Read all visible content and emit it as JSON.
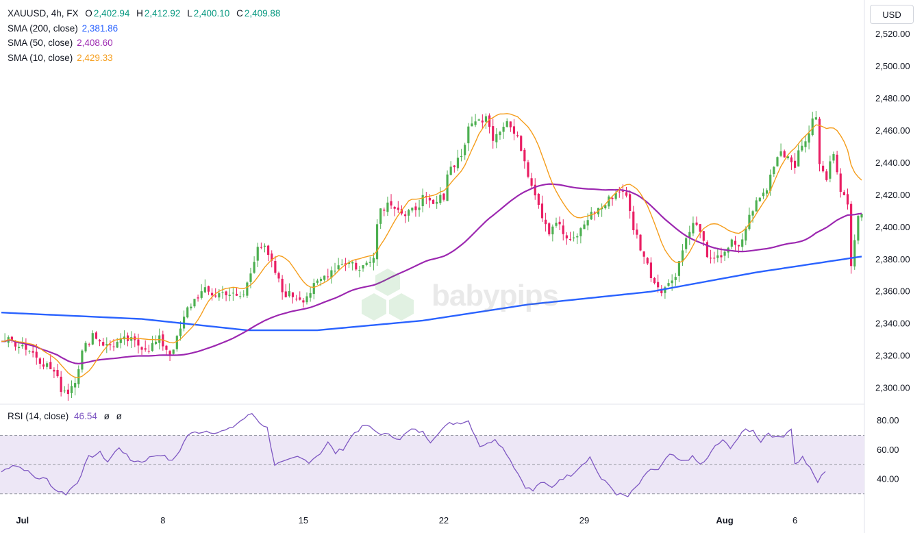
{
  "header": {
    "symbol": "XAUUSD, 4h, FX",
    "open_label": "O",
    "open": "2,402.94",
    "high_label": "H",
    "high": "2,412.92",
    "low_label": "L",
    "low": "2,400.10",
    "close_label": "C",
    "close": "2,409.88",
    "ohlc_color": "#4caf50"
  },
  "indicators": [
    {
      "label": "SMA (200, close)",
      "value": "2,381.86",
      "color": "#2962ff"
    },
    {
      "label": "SMA (50, close)",
      "value": "2,408.60",
      "color": "#9c27b0"
    },
    {
      "label": "SMA (10, close)",
      "value": "2,429.33",
      "color": "#f59d1b"
    }
  ],
  "rsi_legend": {
    "label": "RSI (14, close)",
    "value": "46.54",
    "extra1": "ø",
    "extra2": "ø",
    "color": "#7e57c2"
  },
  "currency_button": "USD",
  "watermark": "babypips",
  "colors": {
    "up": "#4caf50",
    "down": "#e91e63",
    "sma200": "#2962ff",
    "sma50": "#9c27b0",
    "sma10": "#f59d1b",
    "rsi": "#7e57c2",
    "rsi_band": "#ede7f6"
  },
  "chart_data": [
    {
      "type": "candlestick",
      "title": "XAUUSD, 4h, FX",
      "y_axis_ticks": [
        "2,300.00",
        "2,320.00",
        "2,340.00",
        "2,360.00",
        "2,380.00",
        "2,400.00",
        "2,420.00",
        "2,440.00",
        "2,460.00",
        "2,480.00",
        "2,500.00",
        "2,520.00"
      ],
      "ylim": [
        2290,
        2532
      ],
      "x_axis_ticks": [
        "Jul",
        "8",
        "15",
        "22",
        "29",
        "Aug",
        "6"
      ],
      "x_tick_positions": [
        6,
        46,
        86,
        126,
        166,
        206,
        226
      ],
      "series_anchors": {
        "price": [
          [
            0,
            2330
          ],
          [
            3,
            2329
          ],
          [
            6,
            2327
          ],
          [
            9,
            2322
          ],
          [
            12,
            2316
          ],
          [
            15,
            2310
          ],
          [
            17,
            2300
          ],
          [
            19,
            2298
          ],
          [
            21,
            2306
          ],
          [
            23,
            2322
          ],
          [
            26,
            2334
          ],
          [
            28,
            2330
          ],
          [
            30,
            2326
          ],
          [
            33,
            2328
          ],
          [
            36,
            2330
          ],
          [
            39,
            2327
          ],
          [
            42,
            2325
          ],
          [
            45,
            2330
          ],
          [
            48,
            2322
          ],
          [
            50,
            2330
          ],
          [
            53,
            2349
          ],
          [
            56,
            2358
          ],
          [
            58,
            2360
          ],
          [
            61,
            2358
          ],
          [
            64,
            2360
          ],
          [
            67,
            2356
          ],
          [
            69,
            2358
          ],
          [
            71,
            2372
          ],
          [
            73,
            2390
          ],
          [
            75,
            2386
          ],
          [
            78,
            2372
          ],
          [
            80,
            2360
          ],
          [
            82,
            2358
          ],
          [
            86,
            2356
          ],
          [
            88,
            2360
          ],
          [
            90,
            2365
          ],
          [
            93,
            2372
          ],
          [
            95,
            2375
          ],
          [
            97,
            2378
          ],
          [
            100,
            2378
          ],
          [
            102,
            2373
          ],
          [
            104,
            2378
          ],
          [
            106,
            2384
          ],
          [
            107,
            2402
          ],
          [
            108,
            2412
          ],
          [
            111,
            2416
          ],
          [
            113,
            2412
          ],
          [
            115,
            2406
          ],
          [
            117,
            2410
          ],
          [
            120,
            2418
          ],
          [
            123,
            2413
          ],
          [
            126,
            2420
          ],
          [
            127,
            2434
          ],
          [
            129,
            2440
          ],
          [
            131,
            2445
          ],
          [
            133,
            2460
          ],
          [
            135,
            2468
          ],
          [
            137,
            2464
          ],
          [
            138,
            2472
          ],
          [
            140,
            2456
          ],
          [
            142,
            2462
          ],
          [
            144,
            2466
          ],
          [
            146,
            2458
          ],
          [
            148,
            2450
          ],
          [
            150,
            2434
          ],
          [
            152,
            2422
          ],
          [
            154,
            2408
          ],
          [
            156,
            2398
          ],
          [
            158,
            2404
          ],
          [
            160,
            2396
          ],
          [
            162,
            2390
          ],
          [
            165,
            2398
          ],
          [
            167,
            2406
          ],
          [
            169,
            2410
          ],
          [
            172,
            2414
          ],
          [
            174,
            2420
          ],
          [
            177,
            2424
          ],
          [
            178,
            2418
          ],
          [
            180,
            2400
          ],
          [
            182,
            2388
          ],
          [
            184,
            2376
          ],
          [
            186,
            2366
          ],
          [
            188,
            2362
          ],
          [
            190,
            2364
          ],
          [
            192,
            2372
          ],
          [
            194,
            2386
          ],
          [
            196,
            2400
          ],
          [
            198,
            2402
          ],
          [
            200,
            2390
          ],
          [
            202,
            2378
          ],
          [
            204,
            2380
          ],
          [
            206,
            2386
          ],
          [
            208,
            2390
          ],
          [
            210,
            2386
          ],
          [
            212,
            2400
          ],
          [
            214,
            2412
          ],
          [
            216,
            2418
          ],
          [
            218,
            2424
          ],
          [
            220,
            2440
          ],
          [
            222,
            2448
          ],
          [
            224,
            2444
          ],
          [
            226,
            2440
          ],
          [
            228,
            2450
          ],
          [
            230,
            2460
          ],
          [
            232,
            2470
          ],
          [
            233,
            2438
          ],
          [
            235,
            2430
          ],
          [
            237,
            2448
          ],
          [
            239,
            2425
          ],
          [
            241,
            2412
          ],
          [
            242,
            2375
          ],
          [
            243,
            2395
          ],
          [
            244,
            2410
          ]
        ],
        "sma10_end": 2429.33,
        "sma50_end": 2408.6,
        "sma200_end": 2381.86
      }
    },
    {
      "type": "line",
      "title": "RSI (14, close)",
      "y_axis_ticks": [
        "40.00",
        "60.00",
        "80.00"
      ],
      "ylim": [
        20,
        89
      ],
      "bands": [
        30,
        50,
        70
      ],
      "series_anchors": [
        [
          0,
          45
        ],
        [
          3,
          50
        ],
        [
          6,
          47
        ],
        [
          9,
          41
        ],
        [
          12,
          40
        ],
        [
          14,
          33
        ],
        [
          17,
          30
        ],
        [
          20,
          38
        ],
        [
          23,
          55
        ],
        [
          26,
          58
        ],
        [
          28,
          52
        ],
        [
          31,
          62
        ],
        [
          34,
          53
        ],
        [
          37,
          52
        ],
        [
          40,
          56
        ],
        [
          42,
          57
        ],
        [
          45,
          52
        ],
        [
          47,
          60
        ],
        [
          49,
          70
        ],
        [
          51,
          72
        ],
        [
          54,
          73
        ],
        [
          57,
          72
        ],
        [
          60,
          74
        ],
        [
          63,
          80
        ],
        [
          66,
          85
        ],
        [
          68,
          79
        ],
        [
          70,
          75
        ],
        [
          72,
          50
        ],
        [
          75,
          52
        ],
        [
          78,
          55
        ],
        [
          81,
          52
        ],
        [
          84,
          58
        ],
        [
          86,
          65
        ],
        [
          88,
          58
        ],
        [
          90,
          61
        ],
        [
          93,
          72
        ],
        [
          96,
          77
        ],
        [
          99,
          72
        ],
        [
          102,
          70
        ],
        [
          105,
          68
        ],
        [
          108,
          74
        ],
        [
          111,
          72
        ],
        [
          113,
          66
        ],
        [
          115,
          72
        ],
        [
          118,
          78
        ],
        [
          121,
          79
        ],
        [
          123,
          80
        ],
        [
          126,
          63
        ],
        [
          128,
          64
        ],
        [
          130,
          68
        ],
        [
          133,
          58
        ],
        [
          136,
          44
        ],
        [
          138,
          35
        ],
        [
          140,
          32
        ],
        [
          142,
          38
        ],
        [
          145,
          34
        ],
        [
          147,
          40
        ],
        [
          150,
          43
        ],
        [
          152,
          48
        ],
        [
          155,
          55
        ],
        [
          158,
          40
        ],
        [
          160,
          36
        ],
        [
          162,
          30
        ],
        [
          165,
          28
        ],
        [
          168,
          37
        ],
        [
          171,
          47
        ],
        [
          173,
          46
        ],
        [
          176,
          57
        ],
        [
          179,
          52
        ],
        [
          182,
          55
        ],
        [
          184,
          50
        ],
        [
          186,
          54
        ],
        [
          188,
          63
        ],
        [
          190,
          66
        ],
        [
          192,
          62
        ],
        [
          194,
          68
        ],
        [
          196,
          74
        ],
        [
          198,
          73
        ],
        [
          200,
          66
        ],
        [
          202,
          72
        ],
        [
          204,
          68
        ],
        [
          206,
          70
        ],
        [
          208,
          75
        ],
        [
          209,
          50
        ],
        [
          211,
          55
        ],
        [
          213,
          47
        ],
        [
          215,
          38
        ],
        [
          217,
          46
        ]
      ]
    }
  ]
}
